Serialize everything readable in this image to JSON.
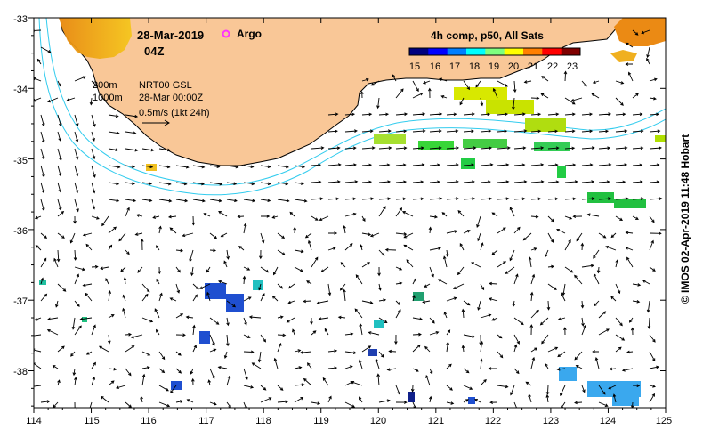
{
  "map": {
    "date": "28-Mar-2019",
    "hour": "04Z",
    "argo_label": "Argo",
    "isobaths": [
      "200m",
      "1000m"
    ],
    "current_info": [
      "NRT00 GSL",
      "28-Mar 00:00Z"
    ],
    "scale_vector_label": "0.5m/s (1kt 24h)",
    "colorbar": {
      "title": "4h comp, p50, All Sats",
      "ticks": [
        "15",
        "16",
        "17",
        "18",
        "19",
        "20",
        "21",
        "22",
        "23"
      ],
      "colors": [
        "#00007f",
        "#0000ff",
        "#007fff",
        "#00ffff",
        "#7fff7f",
        "#ffff00",
        "#ff7f00",
        "#ff0000",
        "#7f0000"
      ]
    },
    "lon_ticks": [
      "114",
      "115",
      "116",
      "117",
      "118",
      "119",
      "120",
      "121",
      "122",
      "123",
      "124",
      "125"
    ],
    "lat_ticks": [
      "-33",
      "-34",
      "-35",
      "-36",
      "-37",
      "-38"
    ],
    "credit": "© IMOS 02-Apr-2019 11:48 Hobart",
    "colors": {
      "land": "#f9c797",
      "isobath": "#33ccee",
      "argo": "#ff33ff"
    }
  }
}
